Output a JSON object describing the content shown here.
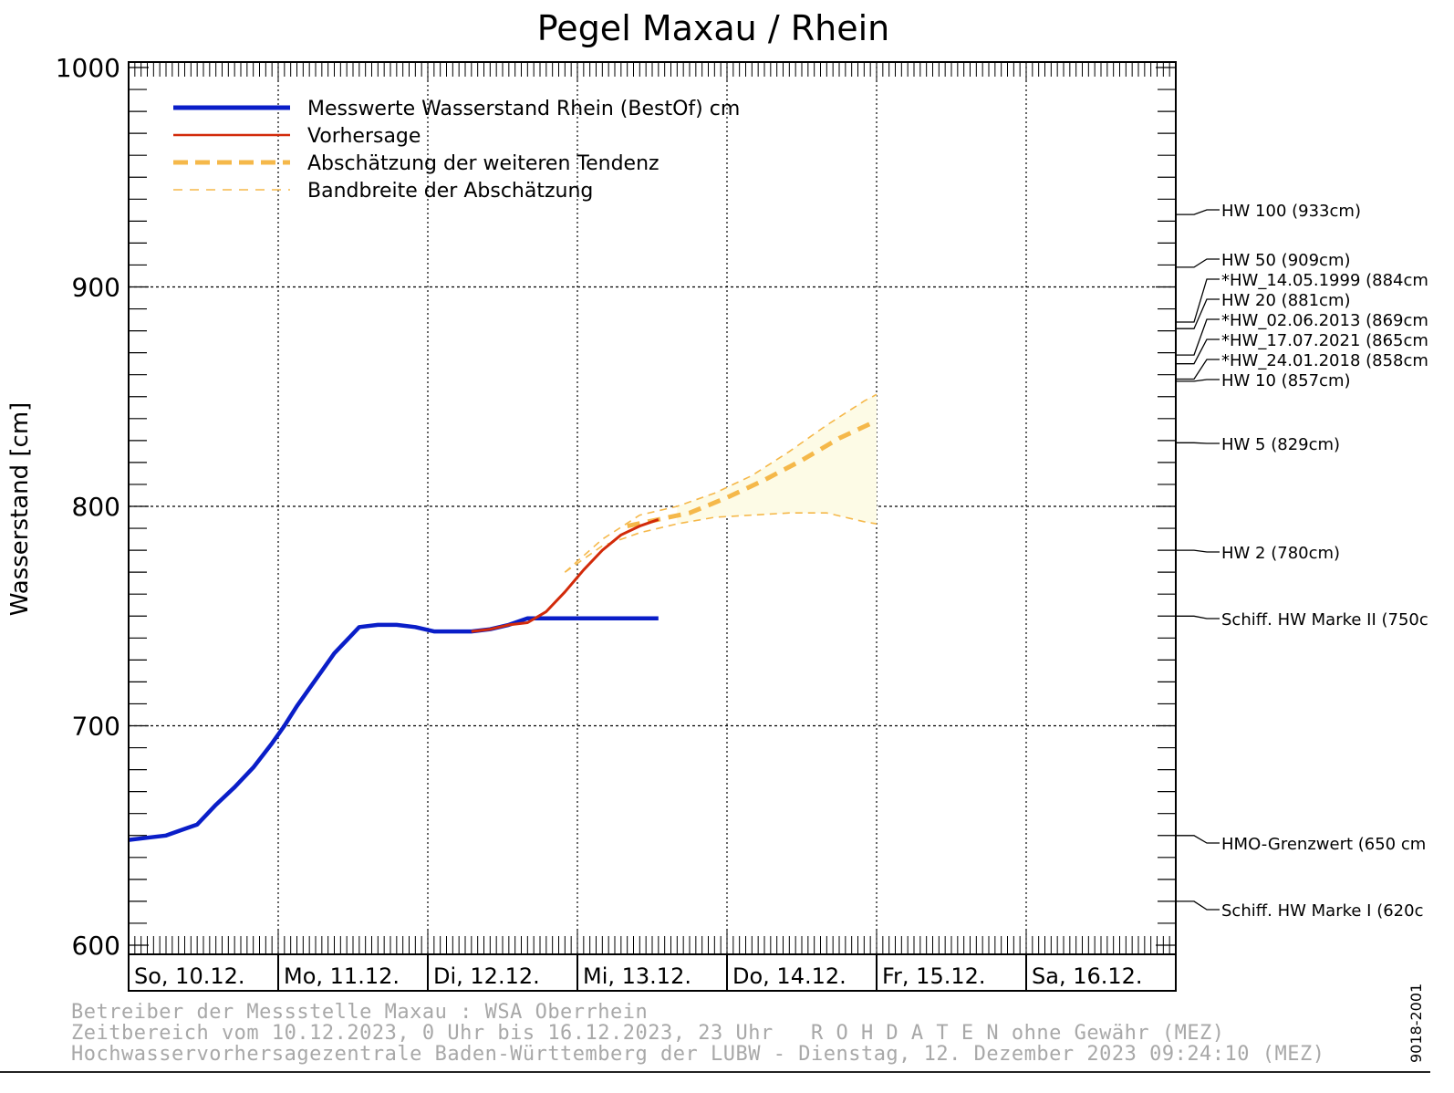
{
  "chart_data": {
    "type": "line",
    "title": "Pegel Maxau / Rhein",
    "ylabel": "Wasserstand [cm]",
    "ylim": [
      600,
      1000
    ],
    "yticks": [
      "600",
      "700",
      "800",
      "900",
      "1000"
    ],
    "xlim_hours": [
      0,
      168
    ],
    "day_labels": [
      "So, 10.12.",
      "Mo, 11.12.",
      "Di, 12.12.",
      "Mi, 13.12.",
      "Do, 14.12.",
      "Fr, 15.12.",
      "Sa, 16.12."
    ],
    "legend_position": "top-left",
    "legend": [
      {
        "label": "Messwerte Wasserstand Rhein (BestOf)  cm",
        "color": "#0a1ec8",
        "style": "thick-solid"
      },
      {
        "label": "Vorhersage",
        "color": "#d22a0a",
        "style": "solid"
      },
      {
        "label": "Abschätzung der weiteren Tendenz",
        "color": "#f5b84a",
        "style": "thick-dashed"
      },
      {
        "label": "Bandbreite der Abschätzung",
        "color": "#f5b84a",
        "style": "thin-dashed"
      }
    ],
    "series": [
      {
        "name": "Messwerte Wasserstand Rhein (BestOf)  cm",
        "x": [
          0,
          3,
          6,
          9,
          11,
          14,
          17,
          20,
          23,
          25,
          27,
          29,
          31,
          33,
          35,
          37,
          40,
          43,
          46,
          49,
          52,
          55,
          58,
          61,
          64,
          67,
          70,
          73,
          76,
          79,
          82,
          85
        ],
        "y": [
          648,
          649,
          650,
          653,
          655,
          664,
          672,
          681,
          692,
          700,
          709,
          717,
          725,
          733,
          739,
          745,
          746,
          746,
          745,
          743,
          743,
          743,
          744,
          746,
          749,
          749,
          749,
          749,
          749,
          749,
          749,
          749
        ]
      },
      {
        "name": "Vorhersage",
        "x": [
          55,
          58,
          61,
          64,
          67,
          70,
          73,
          76,
          79,
          82,
          85
        ],
        "y": [
          743,
          744,
          746,
          747,
          752,
          761,
          771,
          780,
          787,
          791,
          794
        ]
      },
      {
        "name": "Abschätzung der weiteren Tendenz",
        "x": [
          80,
          85,
          90,
          96,
          102,
          108,
          114,
          120
        ],
        "y": [
          791,
          794,
          797,
          804,
          812,
          821,
          831,
          839
        ]
      },
      {
        "name": "Bandbreite der Abschätzung (oben)",
        "x": [
          70,
          76,
          82,
          88,
          94,
          100,
          106,
          112,
          118,
          120
        ],
        "y": [
          770,
          785,
          796,
          800,
          806,
          814,
          825,
          837,
          848,
          851
        ]
      },
      {
        "name": "Bandbreite der Abschätzung (unten)",
        "x": [
          70,
          76,
          82,
          88,
          94,
          100,
          106,
          112,
          118,
          120
        ],
        "y": [
          770,
          782,
          788,
          792,
          795,
          796,
          797,
          797,
          793,
          792
        ]
      }
    ],
    "thresholds": [
      {
        "value": 933,
        "label": "HW 100 (933cm)"
      },
      {
        "value": 909,
        "label": "HW 50 (909cm)"
      },
      {
        "value": 884,
        "label": "*HW_14.05.1999 (884cm"
      },
      {
        "value": 881,
        "label": "HW 20 (881cm)"
      },
      {
        "value": 869,
        "label": "*HW_02.06.2013 (869cm"
      },
      {
        "value": 865,
        "label": "*HW_17.07.2021 (865cm"
      },
      {
        "value": 858,
        "label": "*HW_24.01.2018 (858cm"
      },
      {
        "value": 857,
        "label": "HW 10 (857cm)"
      },
      {
        "value": 829,
        "label": "HW 5 (829cm)"
      },
      {
        "value": 780,
        "label": "HW 2 (780cm)"
      },
      {
        "value": 750,
        "label": "Schiff. HW Marke II (750c"
      },
      {
        "value": 650,
        "label": "HMO-Grenzwert (650 cm"
      },
      {
        "value": 620,
        "label": "Schiff. HW Marke I (620c"
      }
    ]
  },
  "footer": {
    "line1": "Betreiber der Messstelle Maxau : WSA Oberrhein",
    "line2": "Zeitbereich vom 10.12.2023, 0 Uhr bis 16.12.2023, 23 Uhr   R O H D A T E N ohne Gewähr (MEZ)",
    "line3": "Hochwasservorhersagezentrale Baden-Württemberg der LUBW - Dienstag, 12. Dezember 2023 09:24:10 (MEZ)",
    "code": "9018-2001"
  }
}
